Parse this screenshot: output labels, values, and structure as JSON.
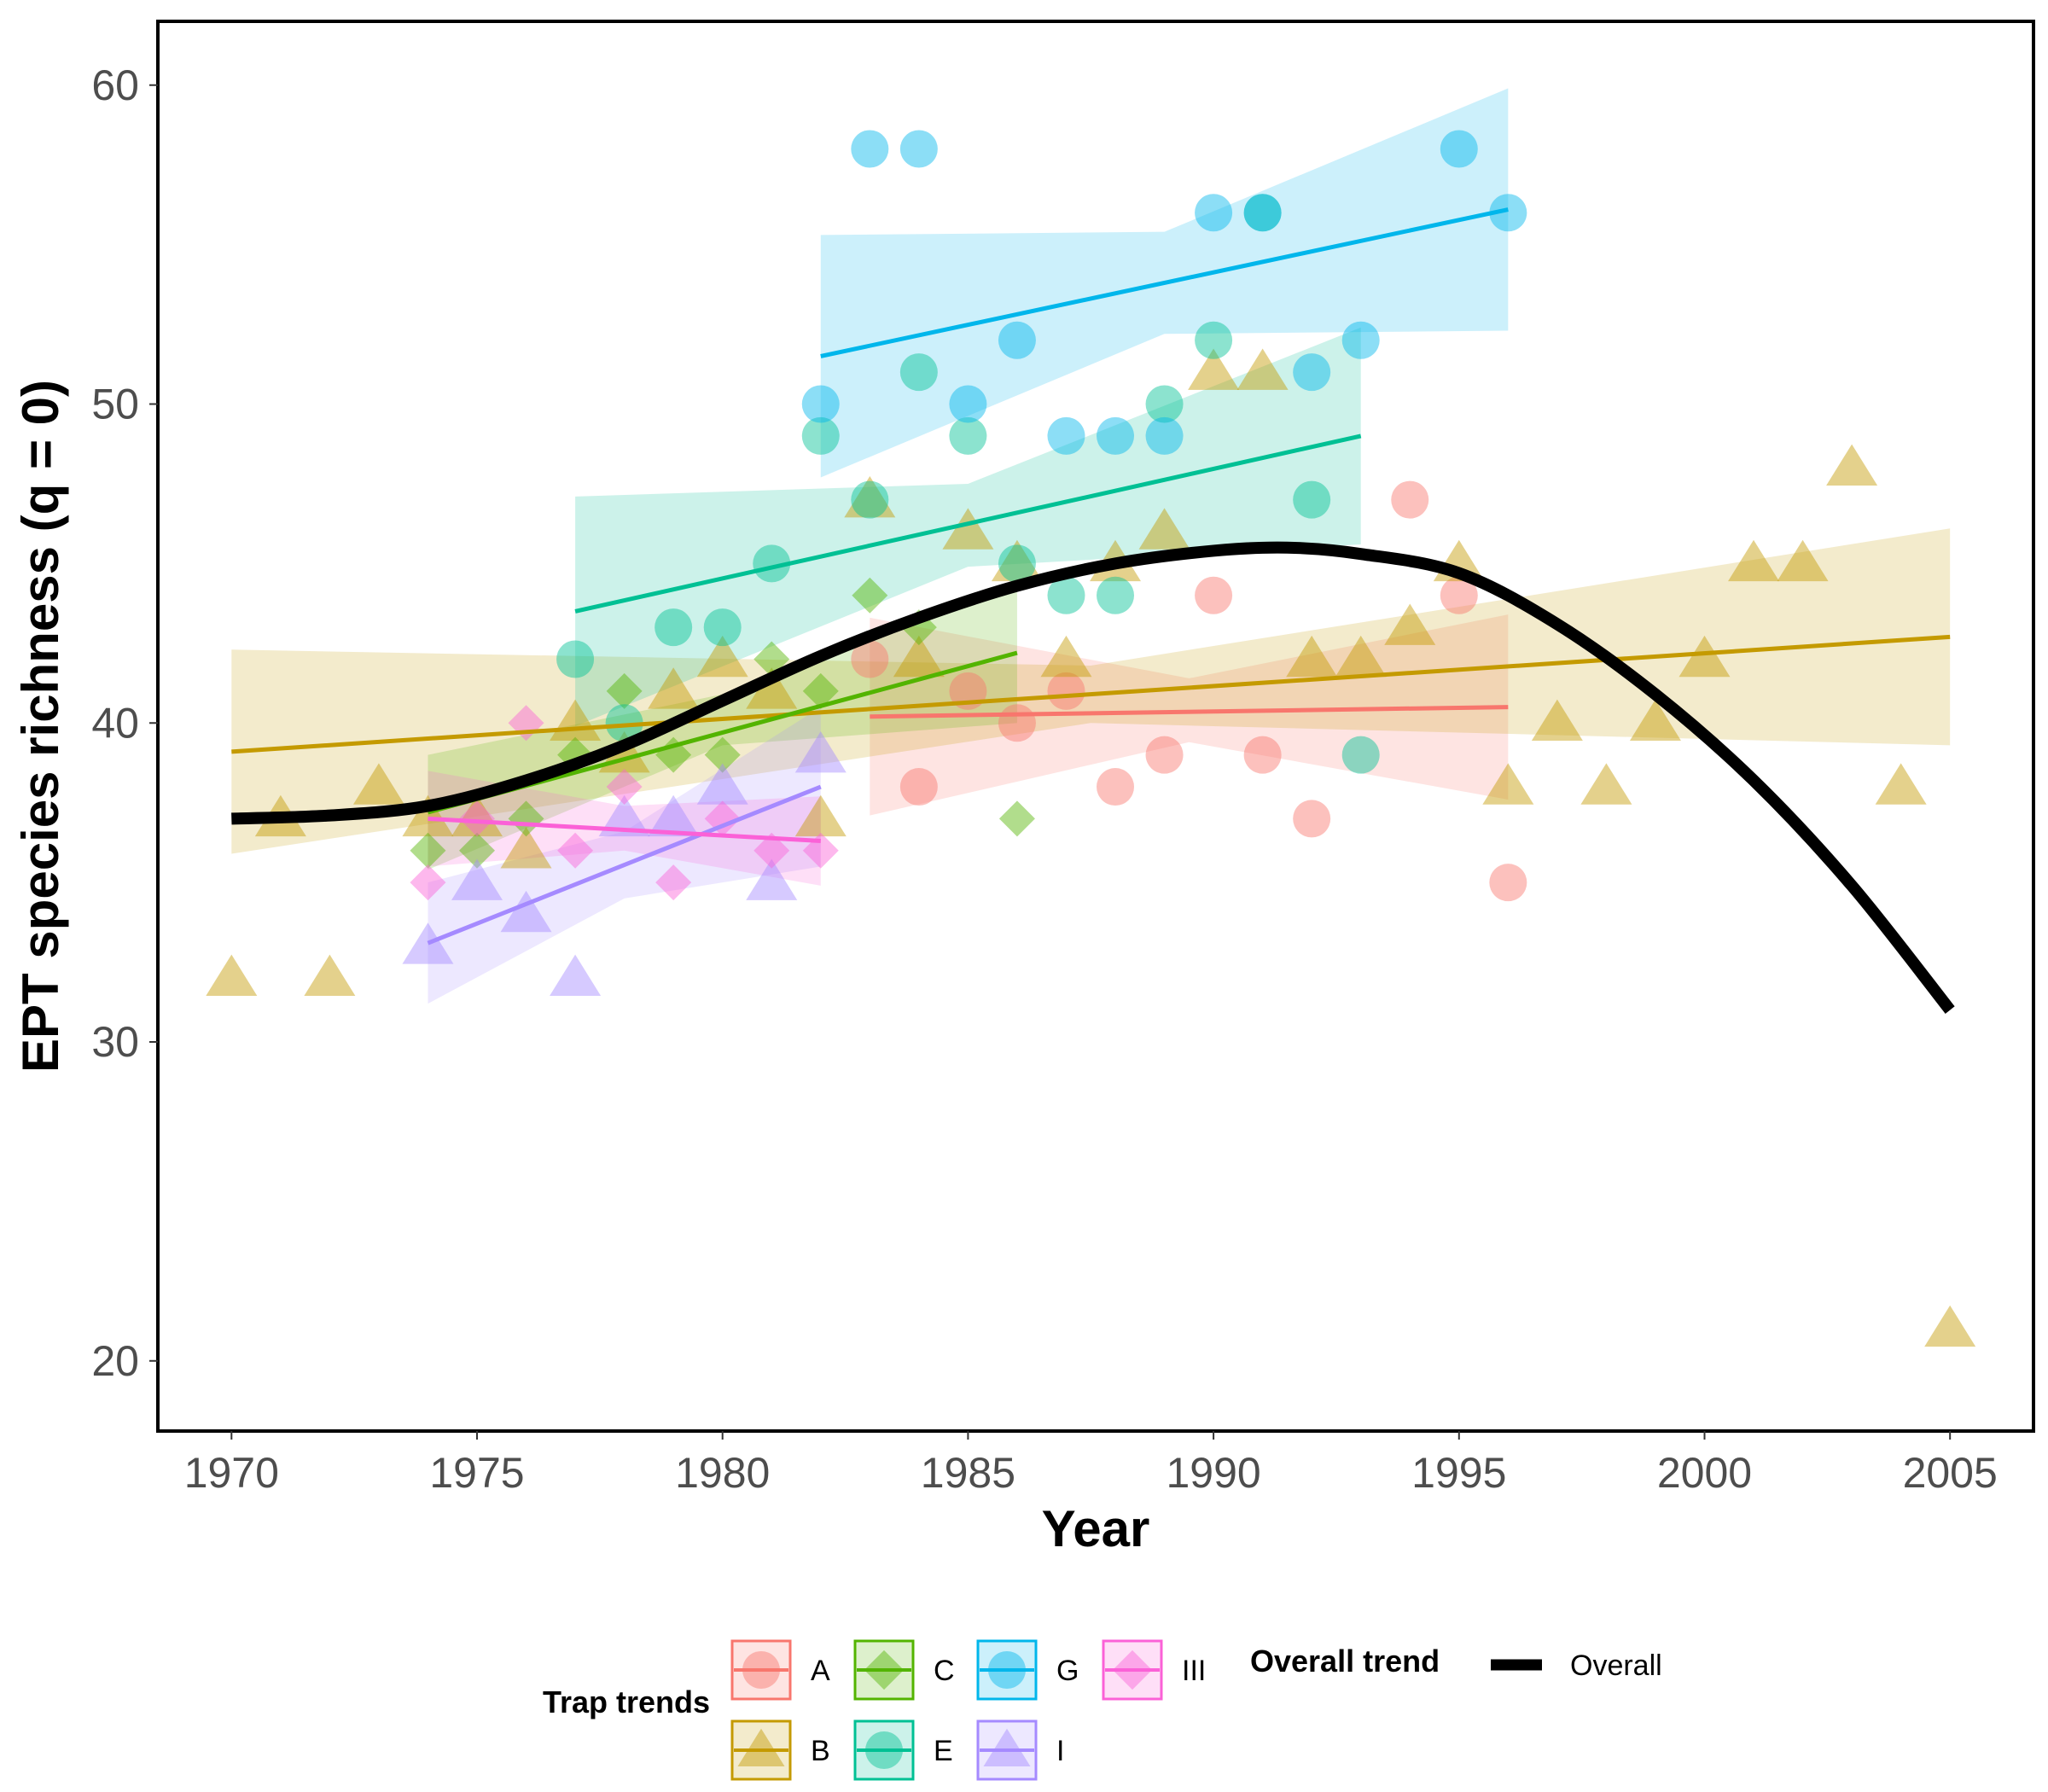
{
  "chart_data": {
    "type": "scatter",
    "xlabel": "Year",
    "ylabel": "EPT species richness (q = 0)",
    "xlim": [
      1968.5,
      2006.7
    ],
    "ylim": [
      17.8,
      62
    ],
    "x_ticks": [
      "1970",
      "1975",
      "1980",
      "1985",
      "1990",
      "1995",
      "2000",
      "2005"
    ],
    "y_ticks": [
      "20",
      "30",
      "40",
      "50",
      "60"
    ],
    "grid": false,
    "legend_position": "bottom",
    "legend": {
      "trap_title": "Trap trends",
      "overall_title": "Overall trend",
      "overall_label": "Overall"
    },
    "series": [
      {
        "name": "A",
        "color": "#F8766D",
        "shape": "circle",
        "points": [
          [
            1983,
            42
          ],
          [
            1984,
            38
          ],
          [
            1985,
            41
          ],
          [
            1986,
            40
          ],
          [
            1987,
            41
          ],
          [
            1988,
            38
          ],
          [
            1989,
            39
          ],
          [
            1990,
            44
          ],
          [
            1991,
            39
          ],
          [
            1992,
            37
          ],
          [
            1994,
            47
          ],
          [
            1995,
            44
          ],
          [
            1996,
            35
          ]
        ],
        "fit": {
          "x": [
            1983,
            1996
          ],
          "y": [
            40.2,
            40.5
          ]
        },
        "band": {
          "x": [
            1983,
            1989.5,
            1996
          ],
          "lower": [
            37.1,
            39.4,
            37.6
          ],
          "upper": [
            43.3,
            41.4,
            43.4
          ]
        }
      },
      {
        "name": "B",
        "color": "#C49A00",
        "shape": "triangle",
        "points": [
          [
            1970,
            32
          ],
          [
            1971,
            37
          ],
          [
            1972,
            32
          ],
          [
            1973,
            38
          ],
          [
            1974,
            37
          ],
          [
            1975,
            37
          ],
          [
            1976,
            36
          ],
          [
            1977,
            40
          ],
          [
            1978,
            39
          ],
          [
            1979,
            41
          ],
          [
            1980,
            42
          ],
          [
            1981,
            41
          ],
          [
            1982,
            37
          ],
          [
            1983,
            47
          ],
          [
            1984,
            42
          ],
          [
            1985,
            46
          ],
          [
            1986,
            45
          ],
          [
            1987,
            42
          ],
          [
            1988,
            45
          ],
          [
            1989,
            46
          ],
          [
            1990,
            51
          ],
          [
            1991,
            51
          ],
          [
            1992,
            42
          ],
          [
            1993,
            42
          ],
          [
            1994,
            43
          ],
          [
            1995,
            45
          ],
          [
            1996,
            38
          ],
          [
            1997,
            40
          ],
          [
            1998,
            38
          ],
          [
            1999,
            40
          ],
          [
            2000,
            42
          ],
          [
            2001,
            45
          ],
          [
            2002,
            45
          ],
          [
            2003,
            48
          ],
          [
            2004,
            38
          ],
          [
            2005,
            21
          ]
        ],
        "fit": {
          "x": [
            1970,
            2005
          ],
          "y": [
            39.1,
            42.7
          ]
        },
        "band": {
          "x": [
            1970,
            1987.5,
            2005
          ],
          "lower": [
            35.9,
            40.0,
            39.3
          ],
          "upper": [
            42.3,
            41.8,
            46.1
          ]
        }
      },
      {
        "name": "C",
        "color": "#53B400",
        "shape": "diamond",
        "points": [
          [
            1974,
            36
          ],
          [
            1975,
            36
          ],
          [
            1976,
            37
          ],
          [
            1977,
            39
          ],
          [
            1978,
            41
          ],
          [
            1979,
            39
          ],
          [
            1980,
            39
          ],
          [
            1981,
            42
          ],
          [
            1982,
            41
          ],
          [
            1983,
            44
          ],
          [
            1984,
            43
          ],
          [
            1986,
            37
          ]
        ],
        "fit": {
          "x": [
            1974,
            1986
          ],
          "y": [
            37.2,
            42.2
          ]
        },
        "band": {
          "x": [
            1974,
            1980,
            1986
          ],
          "lower": [
            35.4,
            39.3,
            40.0
          ],
          "upper": [
            39.0,
            40.9,
            44.4
          ]
        }
      },
      {
        "name": "E",
        "color": "#00C094",
        "shape": "circle",
        "points": [
          [
            1977,
            42
          ],
          [
            1978,
            40
          ],
          [
            1979,
            43
          ],
          [
            1980,
            43
          ],
          [
            1981,
            45
          ],
          [
            1982,
            49
          ],
          [
            1983,
            47
          ],
          [
            1984,
            51
          ],
          [
            1985,
            49
          ],
          [
            1986,
            45
          ],
          [
            1987,
            44
          ],
          [
            1988,
            44
          ],
          [
            1989,
            50
          ],
          [
            1990,
            52
          ],
          [
            1991,
            56
          ],
          [
            1992,
            47
          ],
          [
            1993,
            39
          ]
        ],
        "fit": {
          "x": [
            1977,
            1993
          ],
          "y": [
            43.5,
            49.0
          ]
        },
        "band": {
          "x": [
            1977,
            1985,
            1993
          ],
          "lower": [
            39.9,
            44.9,
            45.6
          ],
          "upper": [
            47.1,
            47.5,
            52.4
          ]
        }
      },
      {
        "name": "G",
        "color": "#00B6EB",
        "shape": "circle",
        "points": [
          [
            1982,
            50
          ],
          [
            1983,
            58
          ],
          [
            1984,
            58
          ],
          [
            1985,
            50
          ],
          [
            1986,
            52
          ],
          [
            1987,
            49
          ],
          [
            1988,
            49
          ],
          [
            1989,
            49
          ],
          [
            1990,
            56
          ],
          [
            1991,
            56
          ],
          [
            1992,
            51
          ],
          [
            1993,
            52
          ],
          [
            1995,
            58
          ],
          [
            1996,
            56
          ]
        ],
        "fit": {
          "x": [
            1982,
            1996
          ],
          "y": [
            51.5,
            56.1
          ]
        },
        "band": {
          "x": [
            1982,
            1989,
            1996
          ],
          "lower": [
            47.7,
            52.2,
            52.3
          ],
          "upper": [
            55.3,
            55.4,
            59.9
          ]
        }
      },
      {
        "name": "I",
        "color": "#A58AFF",
        "shape": "triangle",
        "points": [
          [
            1974,
            33
          ],
          [
            1975,
            35
          ],
          [
            1976,
            34
          ],
          [
            1977,
            32
          ],
          [
            1978,
            37
          ],
          [
            1979,
            37
          ],
          [
            1980,
            38
          ],
          [
            1981,
            35
          ],
          [
            1982,
            39
          ]
        ],
        "fit": {
          "x": [
            1974,
            1982
          ],
          "y": [
            33.1,
            38.0
          ]
        },
        "band": {
          "x": [
            1974,
            1978,
            1982
          ],
          "lower": [
            31.2,
            34.5,
            35.5
          ],
          "upper": [
            35.0,
            36.6,
            40.5
          ]
        }
      },
      {
        "name": "III",
        "color": "#FB61D7",
        "shape": "diamond",
        "points": [
          [
            1974,
            35
          ],
          [
            1975,
            37
          ],
          [
            1976,
            40
          ],
          [
            1977,
            36
          ],
          [
            1978,
            38
          ],
          [
            1979,
            35
          ],
          [
            1980,
            37
          ],
          [
            1981,
            36
          ],
          [
            1982,
            36
          ]
        ],
        "fit": {
          "x": [
            1974,
            1982
          ],
          "y": [
            37.0,
            36.3
          ]
        },
        "band": {
          "x": [
            1974,
            1978,
            1982
          ],
          "lower": [
            35.5,
            36.0,
            34.9
          ],
          "upper": [
            38.5,
            37.4,
            37.7
          ]
        }
      }
    ],
    "overall_trend": {
      "name": "Overall",
      "color": "#000000",
      "x": [
        1970,
        1972,
        1974,
        1976,
        1978,
        1980,
        1982,
        1984,
        1986,
        1988,
        1990,
        1991.5,
        1993,
        1995,
        1997,
        1999,
        2001,
        2003,
        2005
      ],
      "y": [
        37.0,
        37.1,
        37.4,
        38.2,
        39.3,
        40.7,
        42.1,
        43.3,
        44.3,
        45.0,
        45.4,
        45.5,
        45.3,
        44.7,
        43.1,
        40.9,
        38.2,
        34.9,
        31.0
      ]
    }
  }
}
